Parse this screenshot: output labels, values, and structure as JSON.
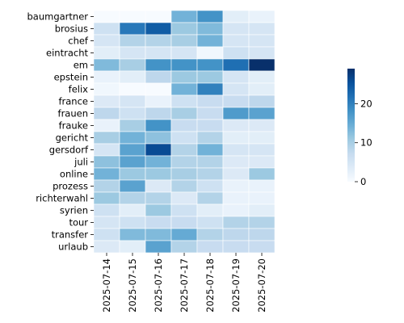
{
  "chart_data": {
    "type": "heatmap",
    "title": "",
    "xlabel": "",
    "ylabel": "",
    "x": [
      "2025-07-14",
      "2025-07-15",
      "2025-07-16",
      "2025-07-17",
      "2025-07-18",
      "2025-07-19",
      "2025-07-20"
    ],
    "y": [
      "baumgartner",
      "brosius",
      "chef",
      "eintracht",
      "em",
      "epstein",
      "felix",
      "france",
      "frauen",
      "frauke",
      "gericht",
      "gersdorf",
      "juli",
      "online",
      "prozess",
      "richterwahl",
      "syrien",
      "tour",
      "transfer",
      "urlaub"
    ],
    "values": [
      [
        0,
        0,
        0,
        14,
        18,
        3,
        2
      ],
      [
        6,
        21,
        24,
        11,
        13,
        5,
        5
      ],
      [
        5,
        9,
        9,
        10,
        14,
        5,
        5
      ],
      [
        3,
        5,
        5,
        5,
        1,
        6,
        5
      ],
      [
        13,
        10,
        18,
        18,
        18,
        22,
        29
      ],
      [
        2,
        3,
        8,
        11,
        11,
        5,
        3
      ],
      [
        1,
        0,
        0,
        14,
        20,
        5,
        3
      ],
      [
        4,
        5,
        2,
        6,
        7,
        7,
        8
      ],
      [
        8,
        6,
        8,
        10,
        7,
        17,
        16
      ],
      [
        2,
        10,
        18,
        7,
        7,
        4,
        4
      ],
      [
        10,
        14,
        12,
        6,
        9,
        3,
        3
      ],
      [
        5,
        16,
        26,
        9,
        14,
        5,
        5
      ],
      [
        12,
        16,
        14,
        9,
        9,
        4,
        4
      ],
      [
        14,
        11,
        11,
        10,
        9,
        4,
        11
      ],
      [
        9,
        16,
        4,
        9,
        6,
        2,
        2
      ],
      [
        11,
        9,
        9,
        4,
        9,
        2,
        2
      ],
      [
        6,
        3,
        11,
        6,
        3,
        2,
        3
      ],
      [
        5,
        6,
        7,
        7,
        6,
        9,
        9
      ],
      [
        6,
        13,
        13,
        15,
        9,
        8,
        8
      ],
      [
        4,
        3,
        16,
        9,
        7,
        7,
        7
      ]
    ],
    "colorbar": {
      "ticks": [
        0,
        10,
        20
      ],
      "vmin": 0,
      "vmax": 29,
      "colormap": "Blues"
    },
    "grid": false,
    "legend": "colorbar-right"
  }
}
